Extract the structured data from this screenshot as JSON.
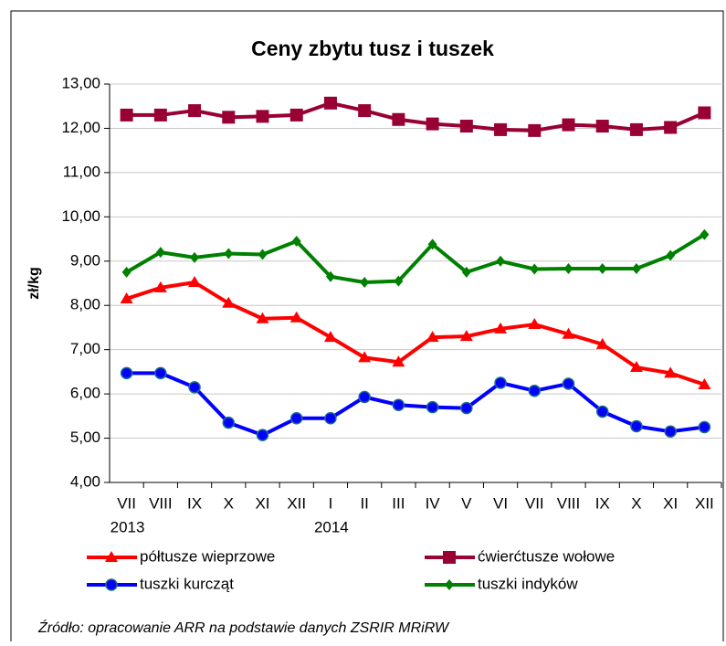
{
  "chart_data": {
    "type": "line",
    "title": "Ceny zbytu tusz i tuszek",
    "y_label": "zł/kg",
    "categories": [
      "VII",
      "VIII",
      "IX",
      "X",
      "XI",
      "XII",
      "I",
      "II",
      "III",
      "IV",
      "V",
      "VI",
      "VII",
      "VIII",
      "IX",
      "X",
      "XI",
      "XII"
    ],
    "years": [
      "2013",
      null,
      null,
      null,
      null,
      null,
      "2014",
      null,
      null,
      null,
      null,
      null,
      null,
      null,
      null,
      null,
      null,
      null
    ],
    "ylim": [
      4,
      13
    ],
    "yticks": [
      {
        "value": 4,
        "label": "4,00"
      },
      {
        "value": 5,
        "label": "5,00"
      },
      {
        "value": 6,
        "label": "6,00"
      },
      {
        "value": 7,
        "label": "7,00"
      },
      {
        "value": 8,
        "label": "8,00"
      },
      {
        "value": 9,
        "label": "9,00"
      },
      {
        "value": 10,
        "label": "10,00"
      },
      {
        "value": 11,
        "label": "11,00"
      },
      {
        "value": 12,
        "label": "12,00"
      },
      {
        "value": 13,
        "label": "13,00"
      }
    ],
    "grid": true,
    "series": [
      {
        "name": "półtusze wieprzowe",
        "color": "#ff0000",
        "marker": "triangle",
        "values": [
          8.15,
          8.4,
          8.52,
          8.05,
          7.7,
          7.72,
          7.28,
          6.82,
          6.72,
          7.28,
          7.3,
          7.47,
          7.57,
          7.35,
          7.12,
          6.6,
          6.47,
          6.21
        ]
      },
      {
        "name": "ćwierćtusze wołowe",
        "color": "#990033",
        "marker": "square",
        "values": [
          12.3,
          12.3,
          12.4,
          12.25,
          12.27,
          12.3,
          12.57,
          12.4,
          12.2,
          12.1,
          12.05,
          11.97,
          11.95,
          12.08,
          12.05,
          11.97,
          12.02,
          12.35
        ]
      },
      {
        "name": "tuszki kurcząt",
        "color": "#0000ff",
        "marker": "circle",
        "values": [
          6.47,
          6.47,
          6.15,
          5.35,
          5.07,
          5.45,
          5.45,
          5.93,
          5.75,
          5.7,
          5.68,
          6.25,
          6.07,
          6.23,
          5.6,
          5.27,
          5.15,
          5.25
        ]
      },
      {
        "name": "tuszki indyków",
        "color": "#008000",
        "marker": "diamond",
        "values": [
          8.75,
          9.2,
          9.08,
          9.17,
          9.15,
          9.45,
          8.65,
          8.52,
          8.55,
          9.38,
          8.75,
          9.0,
          8.82,
          8.83,
          8.83,
          8.83,
          9.13,
          9.6
        ]
      }
    ],
    "source": "Źródło: opracowanie ARR na podstawie danych ZSRIR MRiRW"
  }
}
